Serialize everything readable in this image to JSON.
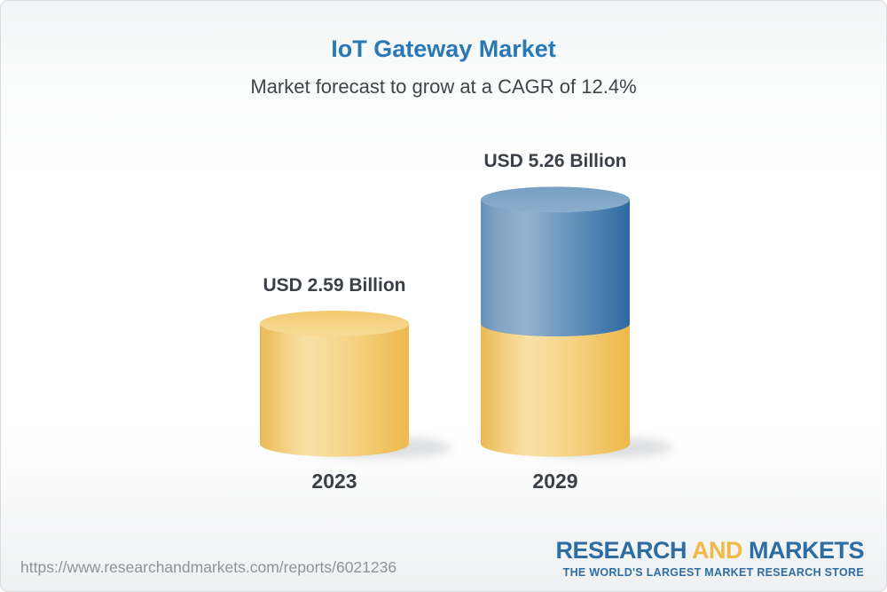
{
  "header": {
    "title": "IoT Gateway Market",
    "subtitle": "Market forecast to grow at a CAGR of 12.4%"
  },
  "chart_data": {
    "type": "bar",
    "style": "3d-cylinder-pictorial",
    "title": "IoT Gateway Market",
    "subtitle": "Market forecast to grow at a CAGR of 12.4%",
    "cagr_percent": 12.4,
    "unit": "USD Billion",
    "categories": [
      "2023",
      "2029"
    ],
    "values": [
      2.59,
      5.26
    ],
    "value_labels": [
      "USD 2.59 Billion",
      "USD 5.26 Billion"
    ],
    "stacked_2029_segments": {
      "base": 2.59,
      "growth": 2.67
    },
    "axis": {
      "y_axis_visible": false,
      "gridlines": false,
      "legend": "none"
    },
    "colors": {
      "base_cylinder": "#F2C66E",
      "growth_cylinder": "#5D8BB6",
      "label_text": "#3B4046"
    }
  },
  "footer": {
    "url": "https://www.researchandmarkets.com/reports/6021236",
    "logo": {
      "word1": "RESEARCH",
      "word2": "AND",
      "word3": "MARKETS",
      "tagline": "THE WORLD'S LARGEST MARKET RESEARCH STORE",
      "brand_blue": "#2E6DA4",
      "brand_gold": "#F1B845"
    }
  },
  "colors": {
    "title_blue": "#2A79B7",
    "subtitle_text": "#3F4549",
    "url_text": "#8F9396",
    "card_border": "#D8DADC",
    "background_top": "#F2F4F5",
    "background_bottom": "#EFF0F1"
  }
}
